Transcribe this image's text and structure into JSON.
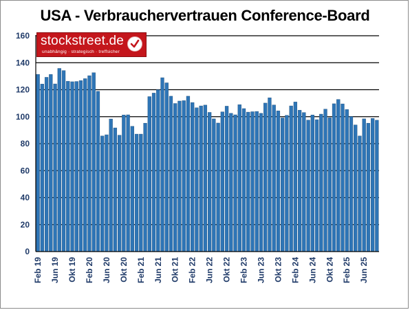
{
  "title": "USA - Verbrauchervertrauen Conference-Board",
  "logo": {
    "name": "stockstreet.de",
    "tagline": "unabhängig · strategisch · treffsicher",
    "icon": "checkmark-icon"
  },
  "colors": {
    "bar_fill": "#2e75b6",
    "bar_edge": "#1f4e79",
    "axis_text": "#1f3a68",
    "grid": "#000000",
    "logo_red": "#c4161c"
  },
  "chart_data": {
    "type": "bar",
    "title": "USA - Verbrauchervertrauen Conference-Board",
    "xlabel": "",
    "ylabel": "",
    "ylim": [
      0,
      160
    ],
    "yticks": [
      0,
      20,
      40,
      60,
      80,
      100,
      120,
      140,
      160
    ],
    "grid": true,
    "x_tick_labels": [
      "Feb 19",
      "Jun 19",
      "Okt 19",
      "Feb 20",
      "Jun 20",
      "Okt 20",
      "Feb 21",
      "Jun 21",
      "Okt 21",
      "Feb 22",
      "Jun 22",
      "Okt 22",
      "Feb 23",
      "Jun 23",
      "Okt 23",
      "Feb 24",
      "Jun 24",
      "Okt 24",
      "Feb 25",
      "Jun 25"
    ],
    "start_month": "Feb 19",
    "values": [
      131.4,
      124.2,
      129.2,
      131.3,
      124.3,
      135.8,
      134.2,
      126.3,
      125.9,
      126.1,
      126.8,
      128.2,
      130.4,
      132.6,
      118.8,
      85.7,
      86.6,
      98.3,
      91.7,
      86.3,
      101.3,
      101.4,
      92.9,
      87.1,
      87.1,
      95.2,
      114.9,
      117.5,
      120.0,
      128.9,
      125.1,
      115.2,
      109.8,
      111.6,
      111.9,
      115.2,
      110.5,
      106.6,
      108.0,
      108.6,
      103.2,
      98.4,
      95.3,
      103.6,
      107.8,
      102.5,
      101.4,
      108.9,
      106.0,
      103.4,
      103.7,
      103.9,
      102.5,
      110.1,
      114.0,
      108.7,
      104.3,
      99.1,
      101.0,
      108.0,
      110.9,
      104.8,
      103.1,
      97.5,
      101.3,
      97.8,
      101.9,
      105.6,
      99.2,
      109.6,
      112.8,
      109.5,
      105.3,
      100.1,
      93.9,
      85.7,
      98.4,
      95.2,
      98.7,
      97.4
    ]
  }
}
